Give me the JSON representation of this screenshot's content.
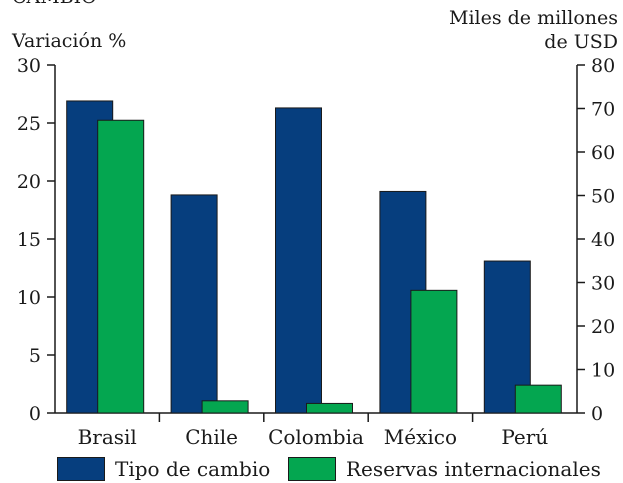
{
  "header": {
    "cut_title": "CAMBIO",
    "left_axis_title": "Variación %",
    "right_axis_title_line1": "Miles de millones",
    "right_axis_title_line2": "de USD"
  },
  "chart_data": {
    "type": "bar",
    "categories": [
      "Brasil",
      "Chile",
      "Colombia",
      "México",
      "Perú"
    ],
    "series": [
      {
        "name": "Tipo de cambio",
        "axis": "left",
        "color": "#063e7e",
        "values": [
          26.9,
          18.8,
          26.3,
          19.1,
          13.1
        ]
      },
      {
        "name": "Reservas internacionales",
        "axis": "right",
        "color": "#04a650",
        "values": [
          67.3,
          2.8,
          2.2,
          28.2,
          6.4
        ]
      }
    ],
    "left_axis": {
      "ylim": [
        0,
        30
      ],
      "ticks": [
        "0",
        "5",
        "10",
        "15",
        "20",
        "25",
        "30"
      ]
    },
    "right_axis": {
      "ylim": [
        0,
        80
      ],
      "ticks": [
        "0",
        "10",
        "20",
        "30",
        "40",
        "50",
        "60",
        "70",
        "80"
      ]
    },
    "legend_position": "bottom",
    "grid": false
  }
}
